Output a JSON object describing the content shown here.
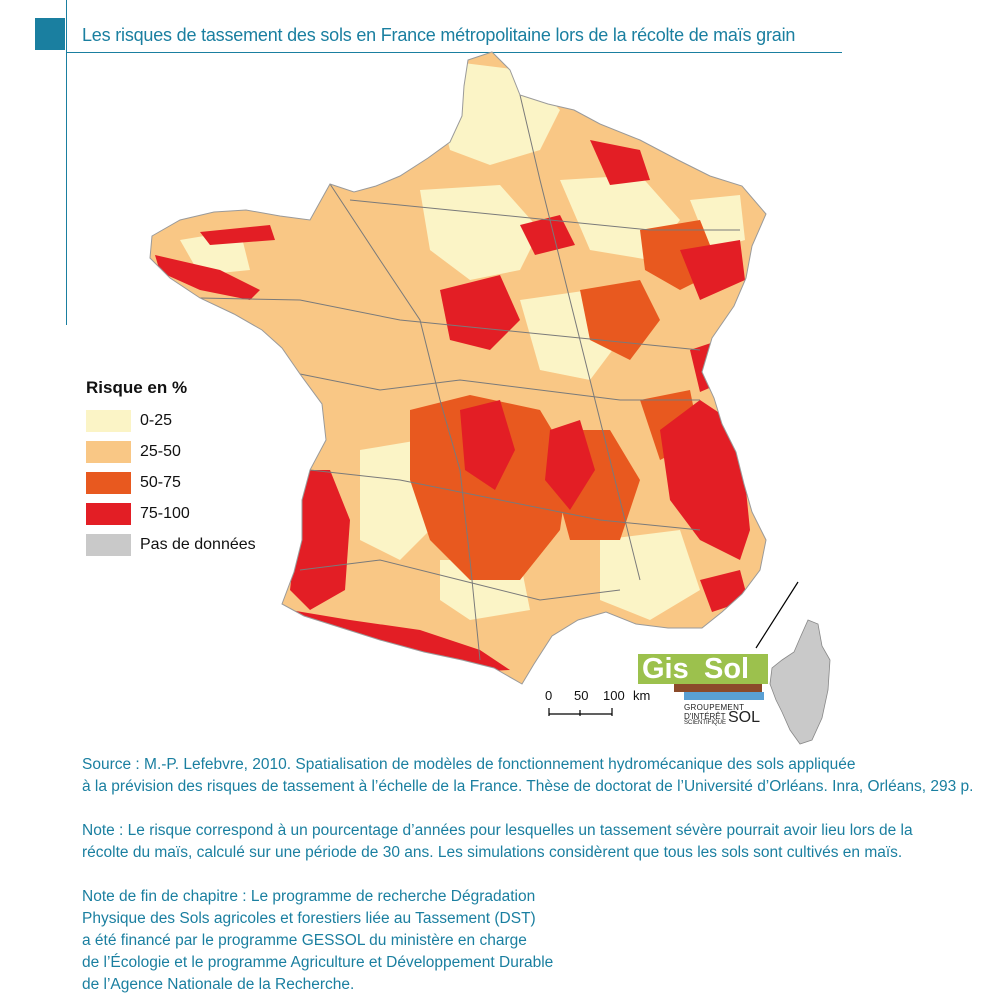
{
  "title": "Les risques de tassement des sols en France métropolitaine lors de la récolte de maïs grain",
  "legend": {
    "title": "Risque en %",
    "items": [
      {
        "label": "0-25",
        "color": "#fbf4c6"
      },
      {
        "label": "25-50",
        "color": "#f9c785"
      },
      {
        "label": "50-75",
        "color": "#e8591f"
      },
      {
        "label": "75-100",
        "color": "#e31e25"
      },
      {
        "label": "Pas de données",
        "color": "#c9c9c9"
      }
    ]
  },
  "map_colors": {
    "border": "#7a7a7a",
    "corsica": "#c9c9c9"
  },
  "scale": {
    "tick0": "0",
    "tick1": "50",
    "tick2": "100",
    "unit": "km"
  },
  "logo": {
    "gis": "Gis",
    "sol": "Sol",
    "line1": "GROUPEMENT",
    "line2": "D'INTÉRÊT",
    "line3": "SCIENTIFIQUE",
    "sol_small": "SOL"
  },
  "source": {
    "line1": "Source : M.-P. Lefebvre, 2010. Spatialisation de modèles de fonctionnement hydromécanique des sols appliquée",
    "line2": "à la prévision des risques de tassement à l’échelle de la France. Thèse de doctorat de l’Université d’Orléans. Inra, Orléans, 293 p."
  },
  "note": {
    "line1": "Note : Le risque correspond à un pourcentage d’années pour lesquelles un tassement sévère pourrait avoir lieu lors de la",
    "line2": "récolte du maïs, calculé sur une période de 30 ans. Les simulations considèrent que tous les sols sont cultivés en maïs."
  },
  "chapter_note": {
    "line1": "Note de fin de chapitre : Le programme de recherche Dégradation",
    "line2": "Physique des Sols agricoles et forestiers liée au Tassement (DST)",
    "line3": "a été financé par le programme GESSOL du ministère en charge",
    "line4": "de l’Écologie et le programme Agriculture et Développement Durable",
    "line5": "de l’Agence Nationale de la Recherche."
  }
}
